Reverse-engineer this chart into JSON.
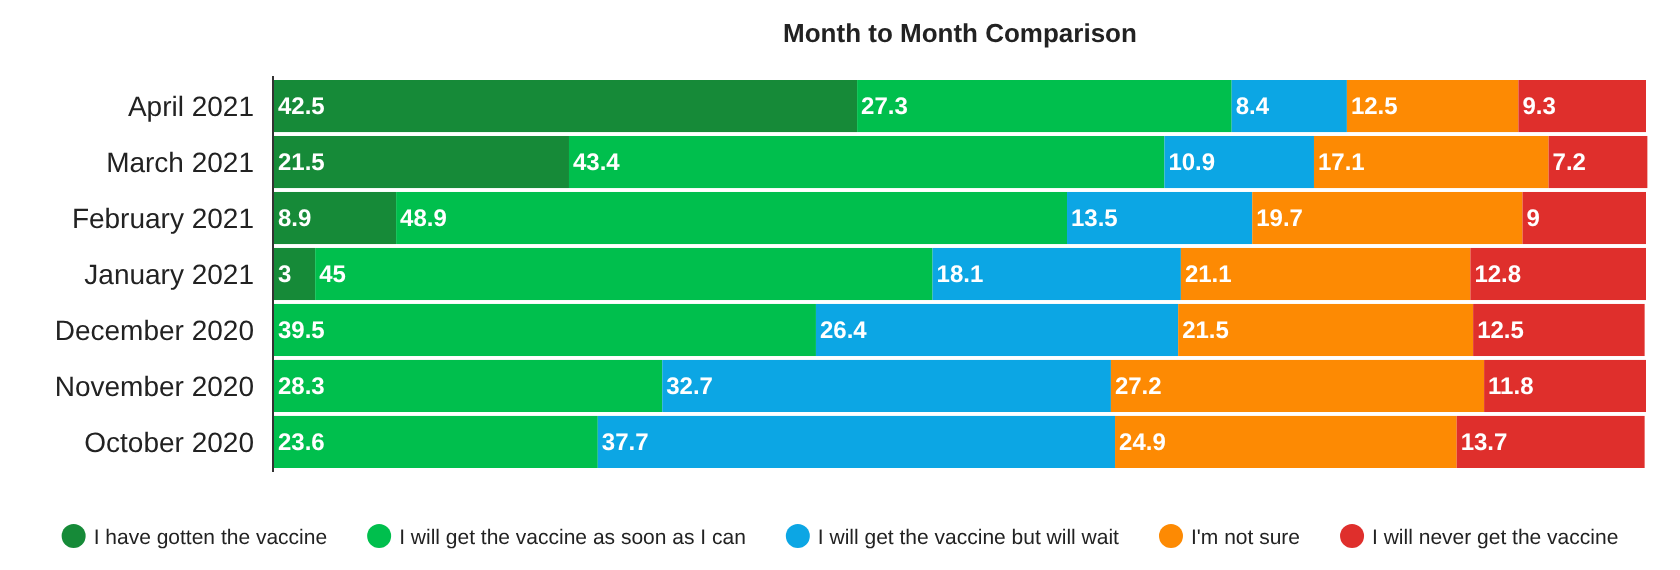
{
  "chart_data": {
    "type": "bar",
    "title": "Month to Month Comparison",
    "orientation": "horizontal",
    "stacked": true,
    "data_labels": true,
    "legend": "bottom",
    "tick_labels": "y",
    "xlim": [
      0,
      100
    ],
    "categories": [
      "April 2021",
      "March 2021",
      "February 2021",
      "January 2021",
      "December 2020",
      "November 2020",
      "October 2020"
    ],
    "series": [
      {
        "name": "I have gotten the vaccine",
        "color": "#168a38",
        "values": [
          42.5,
          21.5,
          8.9,
          3,
          null,
          null,
          null
        ]
      },
      {
        "name": "I will get the vaccine as soon as I can",
        "color": "#00bf4d",
        "values": [
          27.3,
          43.4,
          48.9,
          45,
          39.5,
          28.3,
          23.6
        ]
      },
      {
        "name": "I will get the vaccine but will wait",
        "color": "#0ca6e4",
        "values": [
          8.4,
          10.9,
          13.5,
          18.1,
          26.4,
          32.7,
          37.7
        ]
      },
      {
        "name": "I'm not sure",
        "color": "#fd8a03",
        "values": [
          12.5,
          17.1,
          19.7,
          21.1,
          21.5,
          27.2,
          24.9
        ]
      },
      {
        "name": "I will never get the vaccine",
        "color": "#df2f2c",
        "values": [
          9.3,
          7.2,
          9,
          12.8,
          12.5,
          11.8,
          13.7
        ]
      }
    ]
  }
}
